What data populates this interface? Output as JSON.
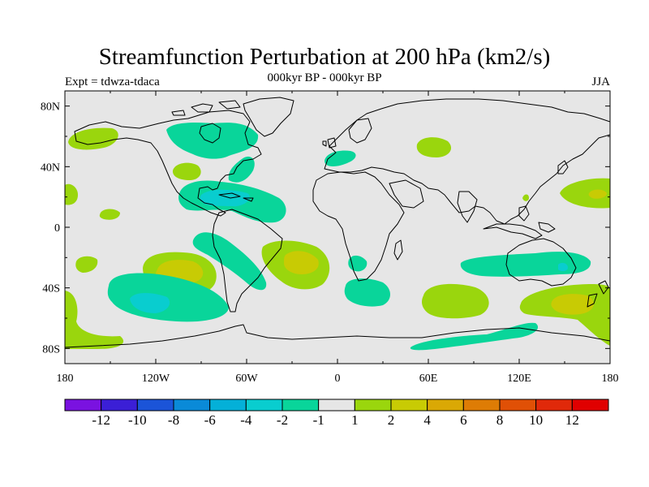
{
  "title": "Streamfunction Perturbation at 200 hPa (km2/s)",
  "subtitle": "000kyr BP - 000kyr BP",
  "left_label": "Expt = tdwza-tdaca",
  "right_label": "JJA",
  "x_ticks": [
    "180",
    "120W",
    "60W",
    "0",
    "60E",
    "120E",
    "180"
  ],
  "y_ticks": [
    "80N",
    "40N",
    "0",
    "40S",
    "80S"
  ],
  "colorbar": {
    "labels": [
      "-12",
      "-10",
      "-8",
      "-6",
      "-4",
      "-2",
      "-1",
      "1",
      "2",
      "4",
      "6",
      "8",
      "10",
      "12"
    ],
    "colors": [
      "#7a12e0",
      "#3b1fd6",
      "#1b54d8",
      "#0a8ad8",
      "#04b0d8",
      "#09cdcf",
      "#09d59a",
      "#e6e6e6",
      "#9ad60d",
      "#c8cb04",
      "#daa805",
      "#de7c05",
      "#e05006",
      "#e0290a",
      "#e00000"
    ]
  },
  "chart_data": {
    "type": "heatmap",
    "title": "Streamfunction Perturbation at 200 hPa (km2/s)",
    "subtitle": "000kyr BP - 000kyr BP",
    "season": "JJA",
    "experiment": "Expt = tdwza-tdaca",
    "projection": "cylindrical equidistant",
    "xlim": [
      -180,
      180
    ],
    "ylim": [
      -90,
      90
    ],
    "contour_levels": [
      -12,
      -10,
      -8,
      -6,
      -4,
      -2,
      -1,
      1,
      2,
      4,
      6,
      8,
      10,
      12
    ],
    "anomaly_centers": [
      {
        "lon": -160,
        "lat": 60,
        "value": 1.5
      },
      {
        "lon": -85,
        "lat": 65,
        "value": -1.5
      },
      {
        "lon": -90,
        "lat": 40,
        "value": 1.5
      },
      {
        "lon": -70,
        "lat": 20,
        "value": -2.5
      },
      {
        "lon": -55,
        "lat": 45,
        "value": -1.5
      },
      {
        "lon": 5,
        "lat": 45,
        "value": -1.5
      },
      {
        "lon": 65,
        "lat": 55,
        "value": 1.5
      },
      {
        "lon": -175,
        "lat": 22,
        "value": 1.5
      },
      {
        "lon": -155,
        "lat": 10,
        "value": 1.5
      },
      {
        "lon": -165,
        "lat": -25,
        "value": 1.5
      },
      {
        "lon": -105,
        "lat": -27,
        "value": 2.5
      },
      {
        "lon": -125,
        "lat": -45,
        "value": -2.5
      },
      {
        "lon": -170,
        "lat": -55,
        "value": 1.5
      },
      {
        "lon": -25,
        "lat": -22,
        "value": 2.5
      },
      {
        "lon": 15,
        "lat": -22,
        "value": -1.5
      },
      {
        "lon": 20,
        "lat": -40,
        "value": -1.5
      },
      {
        "lon": 70,
        "lat": -48,
        "value": 1.5
      },
      {
        "lon": 110,
        "lat": -25,
        "value": -1.5
      },
      {
        "lon": 155,
        "lat": -47,
        "value": 2.5
      },
      {
        "lon": 165,
        "lat": 22,
        "value": 2.5
      },
      {
        "lon": 65,
        "lat": -72,
        "value": -1.5
      },
      {
        "lon": 130,
        "lat": -72,
        "value": -1.5
      },
      {
        "lon": -160,
        "lat": -75,
        "value": 1.5
      },
      {
        "lon": 170,
        "lat": -75,
        "value": 1.5
      }
    ]
  }
}
